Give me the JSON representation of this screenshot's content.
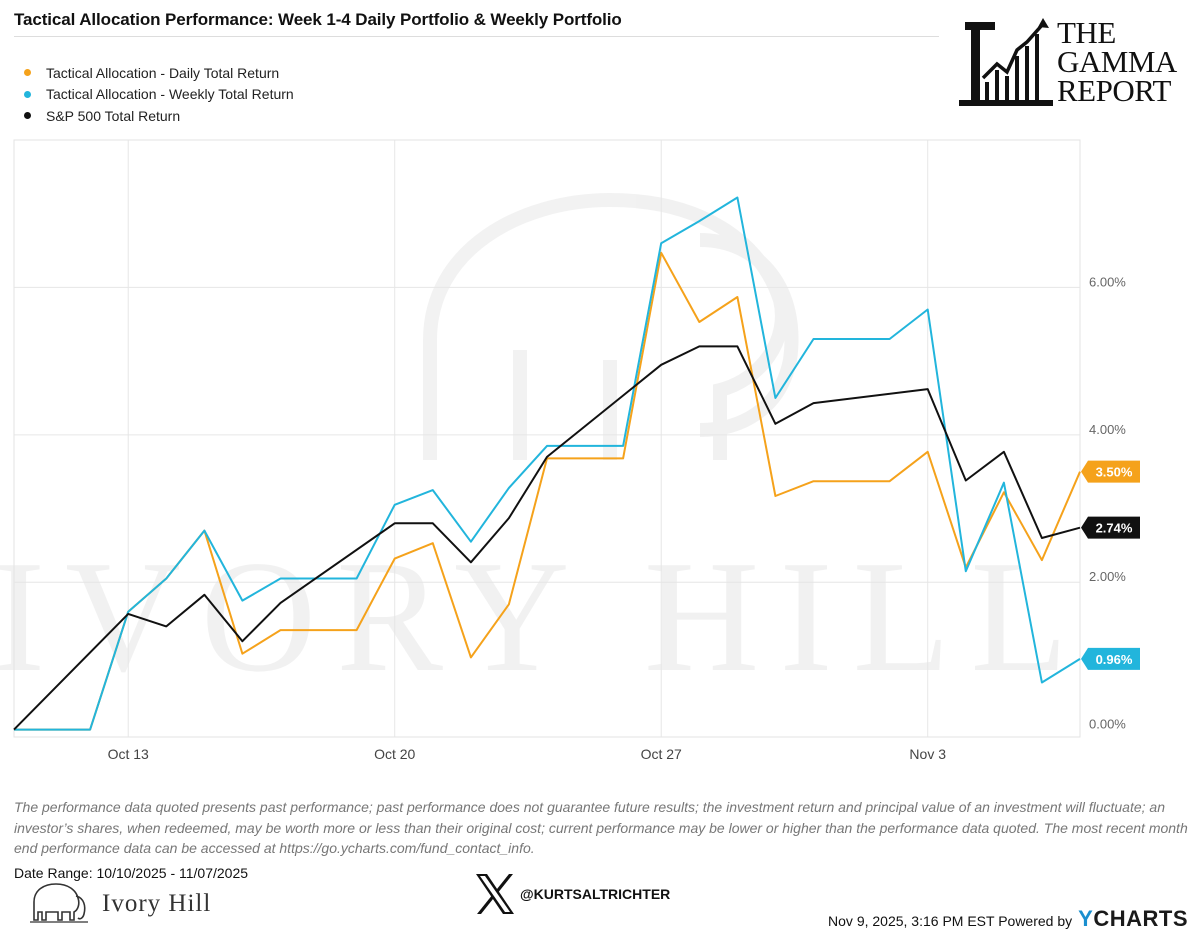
{
  "title": "Tactical Allocation Performance: Week 1-4 Daily Portfolio & Weekly Portfolio",
  "brand_logo": {
    "line1": "THE",
    "line2": "GAMMA",
    "line3": "REPORT"
  },
  "watermark": "IVORY HILL",
  "chart_data": {
    "type": "line",
    "x_ticks": [
      "Oct 13",
      "Oct 20",
      "Oct 27",
      "Nov 3"
    ],
    "y_ticks": [
      "0.00%",
      "2.00%",
      "4.00%",
      "6.00%"
    ],
    "ylim": [
      -0.1,
      8.0
    ],
    "xlim": [
      "2025-10-10",
      "2025-11-07"
    ],
    "grid": true,
    "legend_position": "top-left",
    "series": [
      {
        "name": "Tactical Allocation - Daily Total Return",
        "color": "#f5a21b",
        "end_label": "3.50%",
        "points": [
          [
            "2025-10-10",
            0.0
          ],
          [
            "2025-10-11",
            0.0
          ],
          [
            "2025-10-12",
            0.0
          ],
          [
            "2025-10-13",
            1.6
          ],
          [
            "2025-10-14",
            2.05
          ],
          [
            "2025-10-15",
            2.7
          ],
          [
            "2025-10-16",
            1.03
          ],
          [
            "2025-10-17",
            1.35
          ],
          [
            "2025-10-18",
            1.35
          ],
          [
            "2025-10-19",
            1.35
          ],
          [
            "2025-10-20",
            2.32
          ],
          [
            "2025-10-21",
            2.53
          ],
          [
            "2025-10-22",
            0.98
          ],
          [
            "2025-10-23",
            1.7
          ],
          [
            "2025-10-24",
            3.68
          ],
          [
            "2025-10-25",
            3.68
          ],
          [
            "2025-10-26",
            3.68
          ],
          [
            "2025-10-27",
            6.47
          ],
          [
            "2025-10-28",
            5.53
          ],
          [
            "2025-10-29",
            5.87
          ],
          [
            "2025-10-30",
            3.17
          ],
          [
            "2025-10-31",
            3.37
          ],
          [
            "2025-11-01",
            3.37
          ],
          [
            "2025-11-02",
            3.37
          ],
          [
            "2025-11-03",
            3.77
          ],
          [
            "2025-11-04",
            2.2
          ],
          [
            "2025-11-05",
            3.22
          ],
          [
            "2025-11-06",
            2.3
          ],
          [
            "2025-11-07",
            3.5
          ]
        ]
      },
      {
        "name": "Tactical Allocation - Weekly Total Return",
        "color": "#22b5dc",
        "end_label": "0.96%",
        "points": [
          [
            "2025-10-10",
            0.0
          ],
          [
            "2025-10-11",
            0.0
          ],
          [
            "2025-10-12",
            0.0
          ],
          [
            "2025-10-13",
            1.6
          ],
          [
            "2025-10-14",
            2.05
          ],
          [
            "2025-10-15",
            2.7
          ],
          [
            "2025-10-16",
            1.75
          ],
          [
            "2025-10-17",
            2.05
          ],
          [
            "2025-10-18",
            2.05
          ],
          [
            "2025-10-19",
            2.05
          ],
          [
            "2025-10-20",
            3.05
          ],
          [
            "2025-10-21",
            3.25
          ],
          [
            "2025-10-22",
            2.55
          ],
          [
            "2025-10-23",
            3.28
          ],
          [
            "2025-10-24",
            3.85
          ],
          [
            "2025-10-25",
            3.85
          ],
          [
            "2025-10-26",
            3.85
          ],
          [
            "2025-10-27",
            6.6
          ],
          [
            "2025-10-28",
            6.9
          ],
          [
            "2025-10-29",
            7.22
          ],
          [
            "2025-10-30",
            4.5
          ],
          [
            "2025-10-31",
            5.3
          ],
          [
            "2025-11-01",
            5.3
          ],
          [
            "2025-11-02",
            5.3
          ],
          [
            "2025-11-03",
            5.7
          ],
          [
            "2025-11-04",
            2.15
          ],
          [
            "2025-11-05",
            3.35
          ],
          [
            "2025-11-06",
            0.64
          ],
          [
            "2025-11-07",
            0.96
          ]
        ]
      },
      {
        "name": "S&P 500 Total Return",
        "color": "#111111",
        "end_label": "2.74%",
        "points": [
          [
            "2025-10-10",
            0.0
          ],
          [
            "2025-10-13",
            1.57
          ],
          [
            "2025-10-14",
            1.4
          ],
          [
            "2025-10-15",
            1.83
          ],
          [
            "2025-10-16",
            1.2
          ],
          [
            "2025-10-17",
            1.72
          ],
          [
            "2025-10-20",
            2.8
          ],
          [
            "2025-10-21",
            2.8
          ],
          [
            "2025-10-22",
            2.27
          ],
          [
            "2025-10-23",
            2.87
          ],
          [
            "2025-10-24",
            3.7
          ],
          [
            "2025-10-27",
            4.95
          ],
          [
            "2025-10-28",
            5.2
          ],
          [
            "2025-10-29",
            5.2
          ],
          [
            "2025-10-30",
            4.15
          ],
          [
            "2025-10-31",
            4.43
          ],
          [
            "2025-11-03",
            4.62
          ],
          [
            "2025-11-04",
            3.38
          ],
          [
            "2025-11-05",
            3.77
          ],
          [
            "2025-11-06",
            2.6
          ],
          [
            "2025-11-07",
            2.74
          ]
        ]
      }
    ]
  },
  "footnote": "The performance data quoted presents past performance; past performance does not guarantee future results; the investment return and principal value of an investment will fluctuate; an investor’s shares, when redeemed, may be worth more or less than their original cost; current performance may be lower or higher than the performance data quoted. The most recent month end performance data can be accessed at https://go.ycharts.com/fund_contact_info.",
  "date_range": "Date Range: 10/10/2025 - 11/07/2025",
  "ivory_hill_logo_text": "Ivory Hill",
  "x_handle": "@KURTSALTRICHTER",
  "footer": {
    "timestamp": "Nov 9, 2025, 3:16 PM EST Powered by",
    "ycharts_y": "Y",
    "ycharts_rest": "CHARTS"
  }
}
